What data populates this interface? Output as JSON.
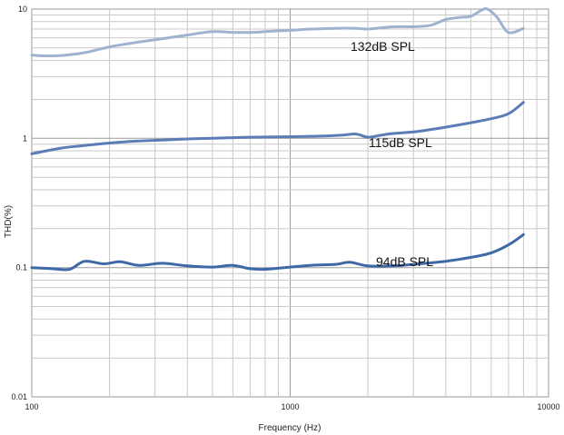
{
  "chart_data": {
    "type": "line",
    "xlabel": "Frequency (Hz)",
    "ylabel": "THD(%)",
    "xscale": "log",
    "yscale": "log",
    "xlim": [
      100,
      10000
    ],
    "ylim": [
      0.01,
      10
    ],
    "grid": true,
    "x_ticks": [
      {
        "value": 100,
        "label": "100"
      },
      {
        "value": 1000,
        "label": "1000"
      },
      {
        "value": 10000,
        "label": "10000"
      }
    ],
    "y_ticks": [
      {
        "value": 0.01,
        "label": "0.01"
      },
      {
        "value": 0.1,
        "label": "0.1"
      },
      {
        "value": 1,
        "label": "1"
      },
      {
        "value": 10,
        "label": "10"
      }
    ],
    "series": [
      {
        "name": "132dB SPL",
        "color": "#9fb3d1",
        "x": [
          100,
          115,
          135,
          160,
          200,
          250,
          320,
          400,
          500,
          600,
          700,
          850,
          1000,
          1200,
          1500,
          1800,
          2000,
          2500,
          3000,
          3500,
          4000,
          4500,
          5000,
          5500,
          5800,
          6300,
          7000,
          8000
        ],
        "y": [
          4.4,
          4.35,
          4.4,
          4.6,
          5.1,
          5.5,
          5.9,
          6.3,
          6.7,
          6.6,
          6.6,
          6.75,
          6.85,
          7.0,
          7.1,
          7.1,
          7.0,
          7.3,
          7.3,
          7.5,
          8.3,
          8.6,
          8.8,
          9.8,
          10.0,
          8.7,
          6.6,
          7.1
        ]
      },
      {
        "name": "115dB SPL",
        "color": "#5b7cb7",
        "x": [
          100,
          130,
          160,
          200,
          250,
          320,
          400,
          500,
          700,
          1000,
          1300,
          1600,
          1800,
          2000,
          2200,
          2500,
          3000,
          3500,
          4000,
          5000,
          6000,
          7000,
          8000
        ],
        "y": [
          0.76,
          0.84,
          0.88,
          0.92,
          0.95,
          0.97,
          0.99,
          1.0,
          1.02,
          1.03,
          1.04,
          1.06,
          1.08,
          1.02,
          1.05,
          1.09,
          1.12,
          1.17,
          1.22,
          1.32,
          1.42,
          1.55,
          1.9
        ]
      },
      {
        "name": "94dB SPL",
        "color": "#3f69a6",
        "x": [
          100,
          120,
          140,
          160,
          190,
          220,
          260,
          320,
          400,
          500,
          600,
          700,
          800,
          1000,
          1200,
          1500,
          1700,
          2000,
          2500,
          3000,
          4000,
          5000,
          6000,
          7000,
          8000
        ],
        "y": [
          0.1,
          0.098,
          0.097,
          0.112,
          0.107,
          0.111,
          0.104,
          0.108,
          0.103,
          0.101,
          0.104,
          0.098,
          0.097,
          0.101,
          0.104,
          0.106,
          0.11,
          0.103,
          0.103,
          0.106,
          0.112,
          0.12,
          0.13,
          0.15,
          0.18
        ]
      }
    ]
  }
}
